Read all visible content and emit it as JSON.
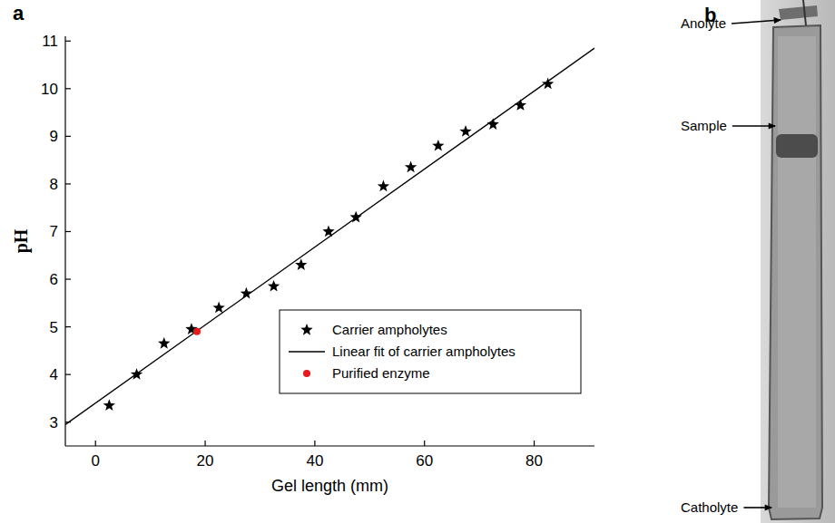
{
  "figure": {
    "panel_letters": [
      "a",
      "b"
    ]
  },
  "chart_data": {
    "type": "scatter",
    "xlabel": "Gel length (mm)",
    "ylabel": "pH",
    "xlim": [
      -5.5,
      91
    ],
    "ylim": [
      2.5,
      11.1
    ],
    "xticks": [
      0,
      20,
      40,
      60,
      80
    ],
    "yticks": [
      3,
      4,
      5,
      6,
      7,
      8,
      9,
      10,
      11
    ],
    "grid": false,
    "legend": "lower right",
    "series": [
      {
        "name": "Carrier ampholytes",
        "type": "scatter",
        "marker": "star",
        "color": "#000000",
        "x": [
          2.5,
          7.5,
          12.5,
          17.5,
          22.5,
          27.5,
          32.5,
          37.5,
          42.5,
          47.5,
          52.5,
          57.5,
          62.5,
          67.5,
          72.5,
          77.5,
          82.5
        ],
        "values": [
          3.35,
          4.0,
          4.65,
          4.95,
          5.4,
          5.7,
          5.85,
          6.3,
          7.0,
          7.3,
          7.95,
          8.35,
          8.8,
          9.1,
          9.25,
          9.65,
          10.1
        ]
      },
      {
        "name": "Linear fit of carrier ampholytes",
        "type": "line",
        "line_style": "solid",
        "color": "#000000",
        "x": [
          -5.5,
          91
        ],
        "values": [
          2.95,
          10.85
        ]
      },
      {
        "name": "Purified enzyme",
        "type": "scatter",
        "marker": "circle",
        "color": "#e8191b",
        "x": [
          18.5
        ],
        "values": [
          4.9
        ]
      }
    ]
  },
  "gel_image": {
    "labels": [
      "Anolyte",
      "Sample",
      "Catholyte"
    ]
  }
}
